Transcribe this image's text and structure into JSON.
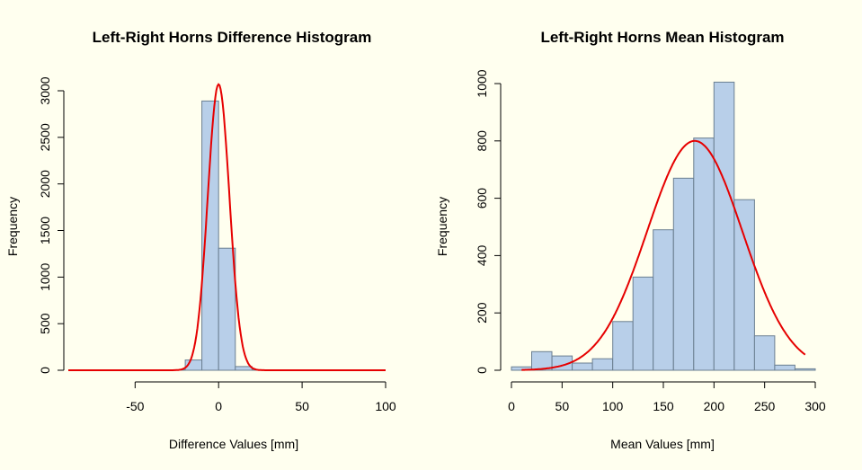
{
  "colors": {
    "background": "#ffffef",
    "bar_fill": "#b8cfe9",
    "bar_border": "#6b7f91",
    "curve": "#e60000",
    "axis": "#000000"
  },
  "chart_data": [
    {
      "type": "bar",
      "subtype": "histogram",
      "title": "Left-Right Horns Difference Histogram",
      "xlabel": "Difference Values [mm]",
      "ylabel": "Frequency",
      "xlim": [
        -90,
        100
      ],
      "ylim": [
        0,
        3000
      ],
      "x_ticks": [
        -50,
        0,
        50,
        100
      ],
      "y_ticks": [
        0,
        500,
        1000,
        1500,
        2000,
        2500,
        3000
      ],
      "bin_edges": [
        -30,
        -20,
        -10,
        0,
        10,
        20,
        30
      ],
      "values": [
        5,
        110,
        2890,
        1310,
        40,
        5
      ],
      "density_curve": {
        "type": "normal",
        "mean": 0,
        "sd": 6.5,
        "peak": 3070,
        "x_range": [
          -90,
          100
        ]
      }
    },
    {
      "type": "bar",
      "subtype": "histogram",
      "title": "Left-Right Horns Mean Histogram",
      "xlabel": "Mean Values [mm]",
      "ylabel": "Frequency",
      "xlim": [
        0,
        300
      ],
      "ylim": [
        0,
        1000
      ],
      "x_ticks": [
        0,
        50,
        100,
        150,
        200,
        250,
        300
      ],
      "y_ticks": [
        0,
        200,
        400,
        600,
        800,
        1000
      ],
      "bin_edges": [
        0,
        20,
        40,
        60,
        80,
        100,
        120,
        140,
        160,
        180,
        200,
        220,
        240,
        260,
        280,
        300
      ],
      "values": [
        12,
        65,
        50,
        25,
        40,
        170,
        325,
        490,
        670,
        810,
        1005,
        595,
        120,
        18,
        5
      ],
      "density_curve": {
        "type": "normal",
        "mean": 181,
        "sd": 47,
        "peak": 800,
        "x_range": [
          10,
          290
        ]
      }
    }
  ]
}
